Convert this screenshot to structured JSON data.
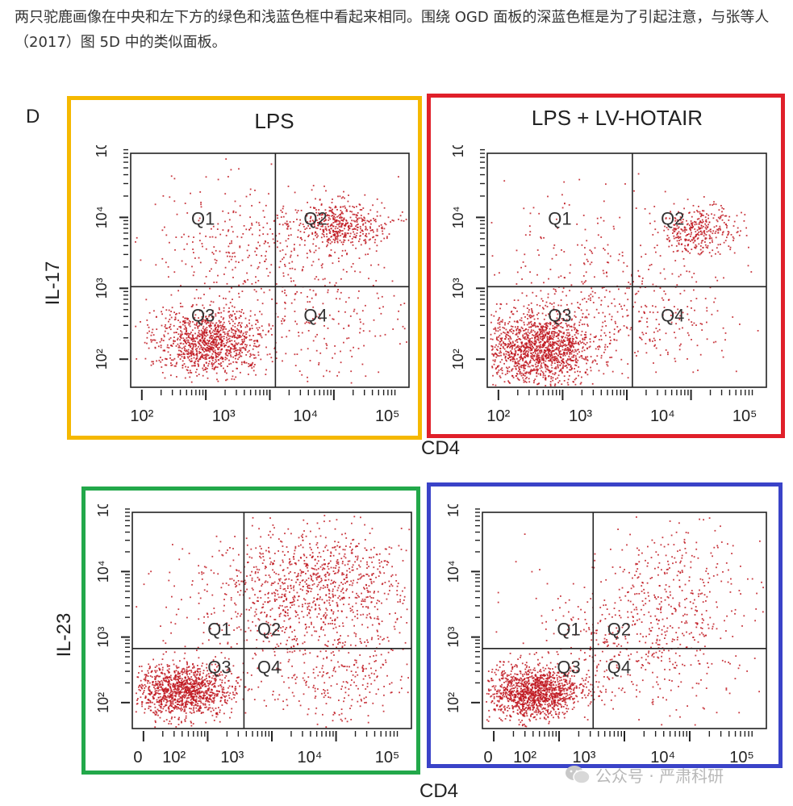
{
  "caption": "两只驼鹿画像在中央和左下方的绿色和浅蓝色框中看起来相同。围绕 OGD 面板的深蓝色框是为了引起注意，与张等人（2017）图 5D 中的类似面板。",
  "figure": {
    "panel_letter": "D",
    "titles": {
      "lps": "LPS",
      "lps_hotair": "LPS + LV-HOTAIR"
    },
    "axis": {
      "il17": "IL-17",
      "il23": "IL-23",
      "cd4_top": "CD4",
      "cd4_bottom": "CD4"
    },
    "quadrants": [
      "Q1",
      "Q2",
      "Q3",
      "Q4"
    ],
    "x_ticks_top": [
      "10²",
      "10³",
      "10⁴",
      "10⁵"
    ],
    "x_ticks_bottom": [
      "0",
      "10²",
      "10³",
      "10⁴",
      "10⁵"
    ],
    "y_ticks": [
      "10²",
      "10³",
      "10⁴",
      "10⁵"
    ],
    "y_ticks_bottom": [
      "10²",
      "10³",
      "10⁴",
      "10⁵"
    ],
    "frame_colors": {
      "top_left": "#f5b800",
      "top_right": "#e0202a",
      "bottom_left": "#22a84a",
      "bottom_right": "#3a43c8"
    },
    "dot_color": "#c0161e"
  },
  "watermark": {
    "text": "公众号 · 严肃科研"
  }
}
